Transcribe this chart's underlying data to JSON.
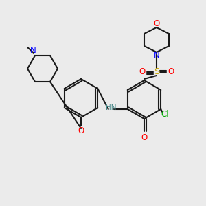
{
  "bg_color": "#ebebeb",
  "bond_color": "#1a1a1a",
  "bond_width": 1.5,
  "atom_colors": {
    "N": "#0000ff",
    "O": "#ff0000",
    "Cl": "#00aa00",
    "S": "#ccaa00",
    "C": "#1a1a1a",
    "H": "#1a1a1a",
    "NH": "#4a8a8a"
  },
  "font_size": 8.5,
  "font_size_small": 7.5
}
